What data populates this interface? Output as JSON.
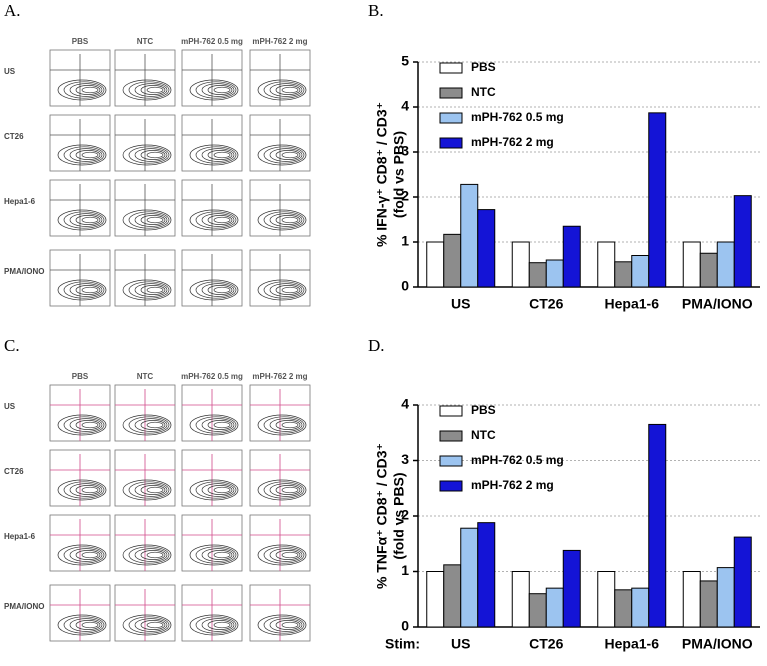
{
  "panel_labels": [
    "A.",
    "B.",
    "C.",
    "D."
  ],
  "flow": [
    {
      "columns": [
        "PBS",
        "NTC",
        "mPH-762 0.5 mg",
        "mPH-762 2 mg"
      ],
      "rows": [
        "US",
        "CT26",
        "Hepa1-6",
        "PMA/IONO"
      ]
    },
    {
      "columns": [
        "PBS",
        "NTC",
        "mPH-762 0.5 mg",
        "mPH-762 2 mg"
      ],
      "rows": [
        "US",
        "CT26",
        "Hepa1-6",
        "PMA/IONO"
      ]
    }
  ],
  "chart_data": [
    {
      "type": "bar",
      "ylabel": [
        "% IFN-γ⁺ CD8⁺ / CD3⁺",
        "(fold vs PBS)"
      ],
      "categories": [
        "US",
        "CT26",
        "Hepa1-6",
        "PMA/IONO"
      ],
      "series": [
        {
          "name": "PBS",
          "color": "#ffffff",
          "values": [
            1,
            1,
            1,
            1
          ]
        },
        {
          "name": "NTC",
          "color": "#8c8c8c",
          "values": [
            1.17,
            0.54,
            0.56,
            0.75
          ]
        },
        {
          "name": "mPH-762 0.5 mg",
          "color": "#9cc4f0",
          "values": [
            2.28,
            0.6,
            0.7,
            1.0
          ]
        },
        {
          "name": "mPH-762 2 mg",
          "color": "#1414d6",
          "values": [
            1.72,
            1.35,
            3.87,
            2.03
          ]
        }
      ],
      "ylim": [
        0,
        5
      ],
      "yticks": [
        0,
        1,
        2,
        3,
        4,
        5
      ],
      "grid": true,
      "legend": "upper-left"
    },
    {
      "type": "bar",
      "ylabel": [
        "% TNFα⁺ CD8⁺ / CD3⁺",
        "(fold vs PBS)"
      ],
      "xlabel": "Stim:",
      "categories": [
        "US",
        "CT26",
        "Hepa1-6",
        "PMA/IONO"
      ],
      "series": [
        {
          "name": "PBS",
          "color": "#ffffff",
          "values": [
            1,
            1,
            1,
            1
          ]
        },
        {
          "name": "NTC",
          "color": "#8c8c8c",
          "values": [
            1.12,
            0.6,
            0.67,
            0.83
          ]
        },
        {
          "name": "mPH-762 0.5 mg",
          "color": "#9cc4f0",
          "values": [
            1.78,
            0.7,
            0.7,
            1.07
          ]
        },
        {
          "name": "mPH-762 2 mg",
          "color": "#1414d6",
          "values": [
            1.88,
            1.38,
            3.65,
            1.62
          ]
        }
      ],
      "ylim": [
        0,
        4
      ],
      "yticks": [
        0,
        1,
        2,
        3,
        4
      ],
      "grid": true,
      "legend": "upper-left"
    }
  ]
}
